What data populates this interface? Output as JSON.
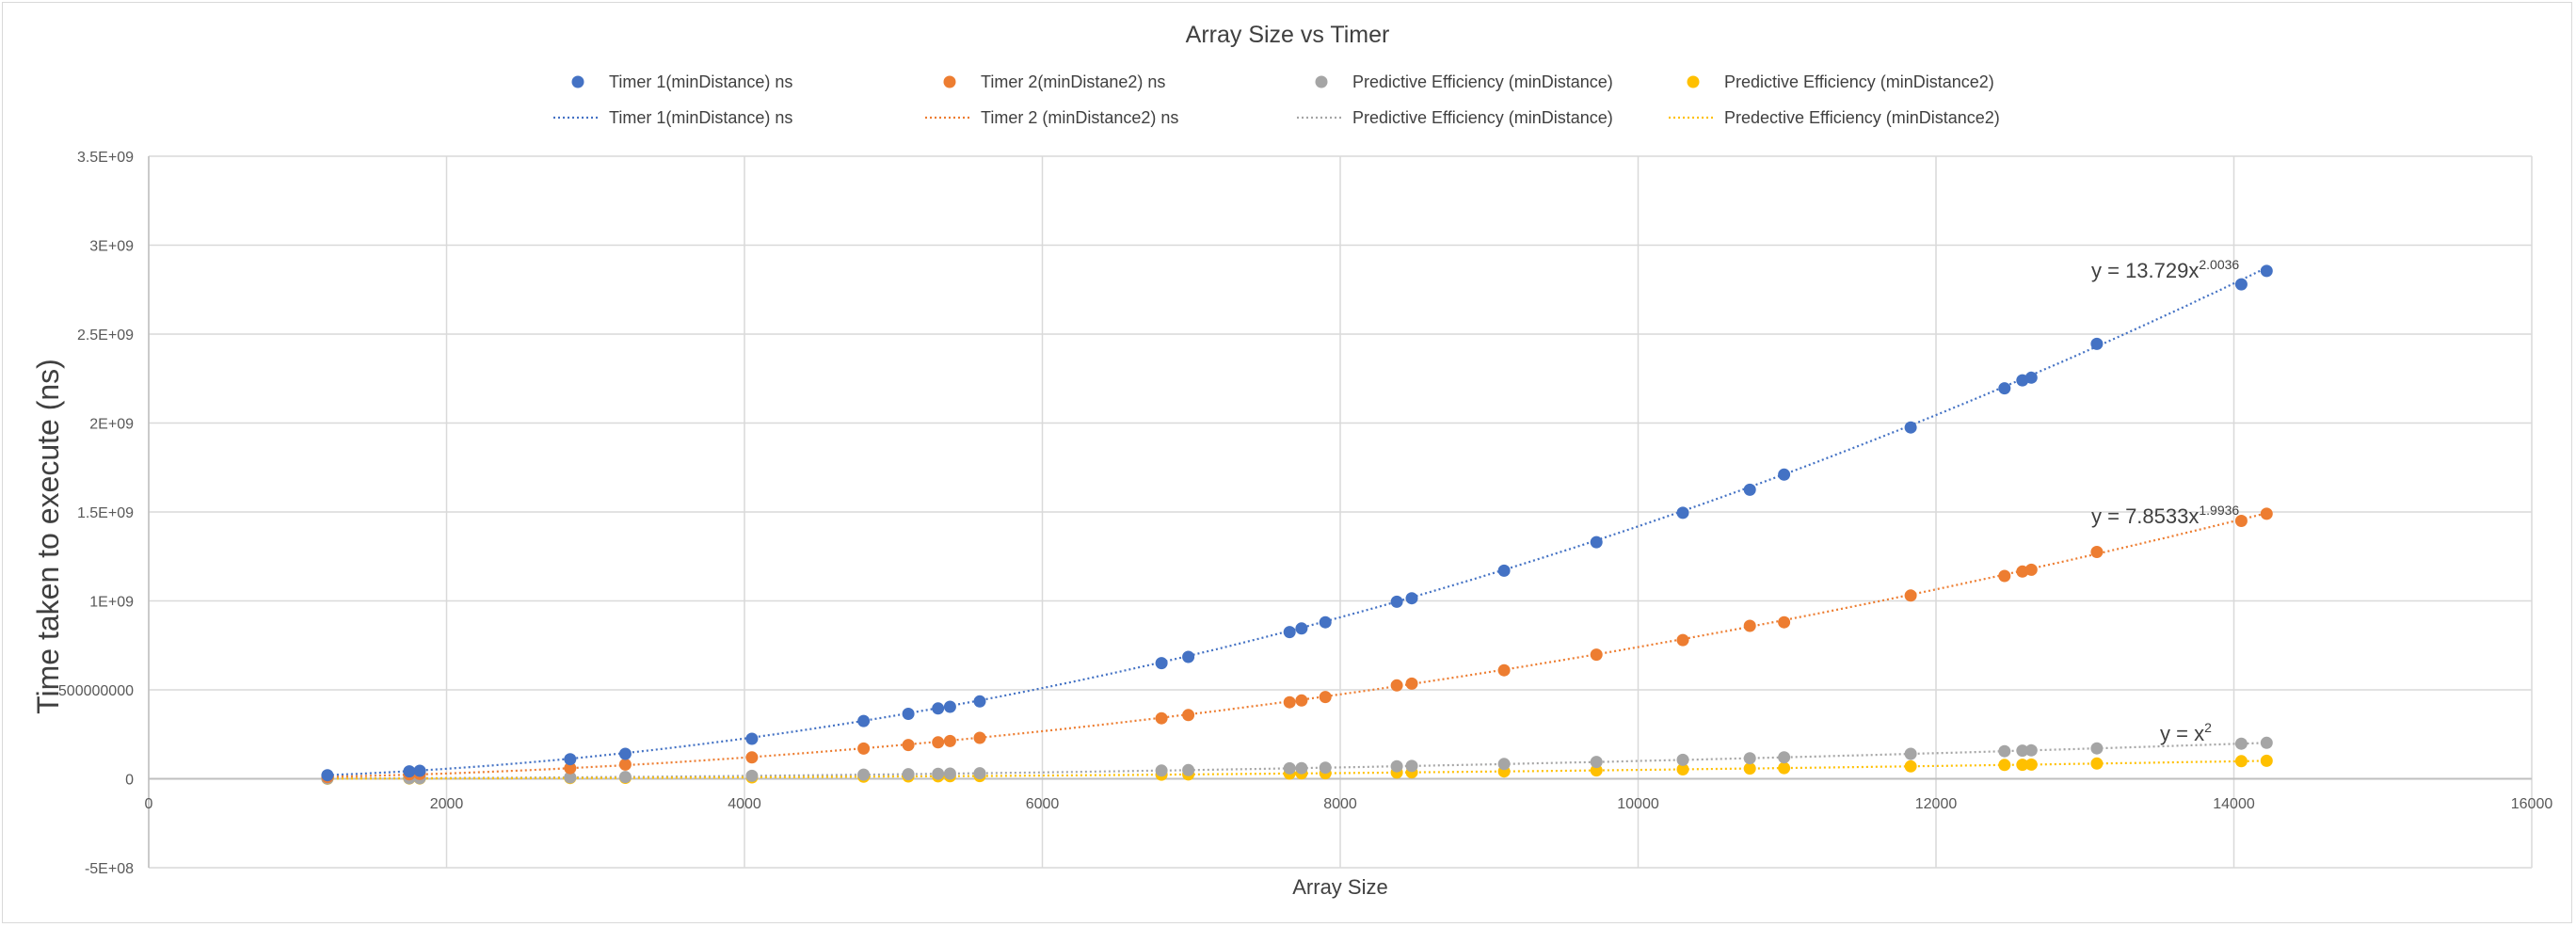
{
  "chart_data": {
    "type": "scatter",
    "title": "Array Size vs Timer",
    "xlabel": "Array Size",
    "ylabel": "Time taken to execute (ns)",
    "xlim": [
      0,
      16000
    ],
    "ylim": [
      -500000000,
      3500000000
    ],
    "x_ticks": [
      "0",
      "2000",
      "4000",
      "6000",
      "8000",
      "10000",
      "12000",
      "14000",
      "16000"
    ],
    "y_ticks": [
      "-5E+08",
      "0",
      "500000000",
      "1E+09",
      "1.5E+09",
      "2E+09",
      "2.5E+09",
      "3E+09",
      "3.5E+09"
    ],
    "grid": true,
    "legend_position": "top",
    "x": [
      1200,
      1750,
      1820,
      2830,
      3200,
      4050,
      4800,
      5100,
      5300,
      5380,
      5580,
      6800,
      6980,
      7660,
      7740,
      7900,
      8380,
      8480,
      9100,
      9720,
      10300,
      10750,
      10980,
      11830,
      12460,
      12580,
      12640,
      13080,
      14050,
      14220
    ],
    "series": [
      {
        "name": "Timer 1(minDistance) ns",
        "color": "#4472c4",
        "values": [
          20000000,
          42000000,
          45000000,
          110000000,
          140000000,
          225000000,
          325000000,
          365000000,
          395000000,
          405000000,
          435000000,
          650000000,
          685000000,
          825000000,
          845000000,
          880000000,
          995000000,
          1015000000,
          1170000000,
          1330000000,
          1495000000,
          1625000000,
          1710000000,
          1975000000,
          2195000000,
          2240000000,
          2255000000,
          2445000000,
          2780000000,
          2855000000
        ]
      },
      {
        "name": "Timer 2(minDistane2) ns",
        "color": "#ed7d31",
        "values": [
          10000000,
          25000000,
          27000000,
          60000000,
          80000000,
          120000000,
          170000000,
          190000000,
          205000000,
          212000000,
          230000000,
          340000000,
          358000000,
          430000000,
          440000000,
          460000000,
          525000000,
          535000000,
          610000000,
          698000000,
          780000000,
          860000000,
          880000000,
          1030000000,
          1140000000,
          1165000000,
          1175000000,
          1275000000,
          1450000000,
          1490000000
        ]
      },
      {
        "name": "Predictive Efficiency (minDistance)",
        "color": "#a5a5a5",
        "values": [
          1440000,
          3060000,
          3310000,
          8010000,
          10240000,
          16400000,
          23040000,
          26010000,
          28090000,
          28940000,
          31140000,
          46240000,
          48720000,
          58680000,
          59910000,
          62410000,
          70220000,
          71910000,
          82810000,
          94480000,
          106090000,
          115560000,
          120560000,
          139950000,
          155250000,
          158260000,
          159770000,
          171090000,
          197400000,
          202210000
        ]
      },
      {
        "name": "Predictive Efficiency (minDistance2)",
        "color": "#ffc000",
        "values": [
          700000,
          1500000,
          1700000,
          4000000,
          5100000,
          8200000,
          11500000,
          13000000,
          14000000,
          14500000,
          15600000,
          23100000,
          24400000,
          29300000,
          30000000,
          31200000,
          35100000,
          36000000,
          41400000,
          47200000,
          53000000,
          57800000,
          60300000,
          70000000,
          77600000,
          79100000,
          79900000,
          85500000,
          98700000,
          101100000
        ]
      }
    ],
    "trendlines": [
      {
        "name": "Timer 1(minDistance) ns",
        "type": "power",
        "coefficient": 13.729,
        "exponent": 2.0036,
        "color": "#4472c4"
      },
      {
        "name": "Timer 2 (minDistance2) ns",
        "type": "power",
        "coefficient": 7.8533,
        "exponent": 1.9936,
        "color": "#ed7d31"
      },
      {
        "name": "Predictive Efficiency (minDistance)",
        "type": "power",
        "coefficient": 1,
        "exponent": 2,
        "color": "#a5a5a5"
      },
      {
        "name": "Predective Efficiency (minDistance2)",
        "type": "power",
        "coefficient": 0.5,
        "exponent": 2,
        "color": "#ffc000"
      }
    ],
    "equations": [
      {
        "base": "y = 13.729x",
        "sup": "2.0036",
        "color_series": 0
      },
      {
        "base": "y = 7.8533x",
        "sup": "1.9936",
        "color_series": 1
      },
      {
        "base": "y = x",
        "sup": "2",
        "color_series": 2
      }
    ]
  }
}
